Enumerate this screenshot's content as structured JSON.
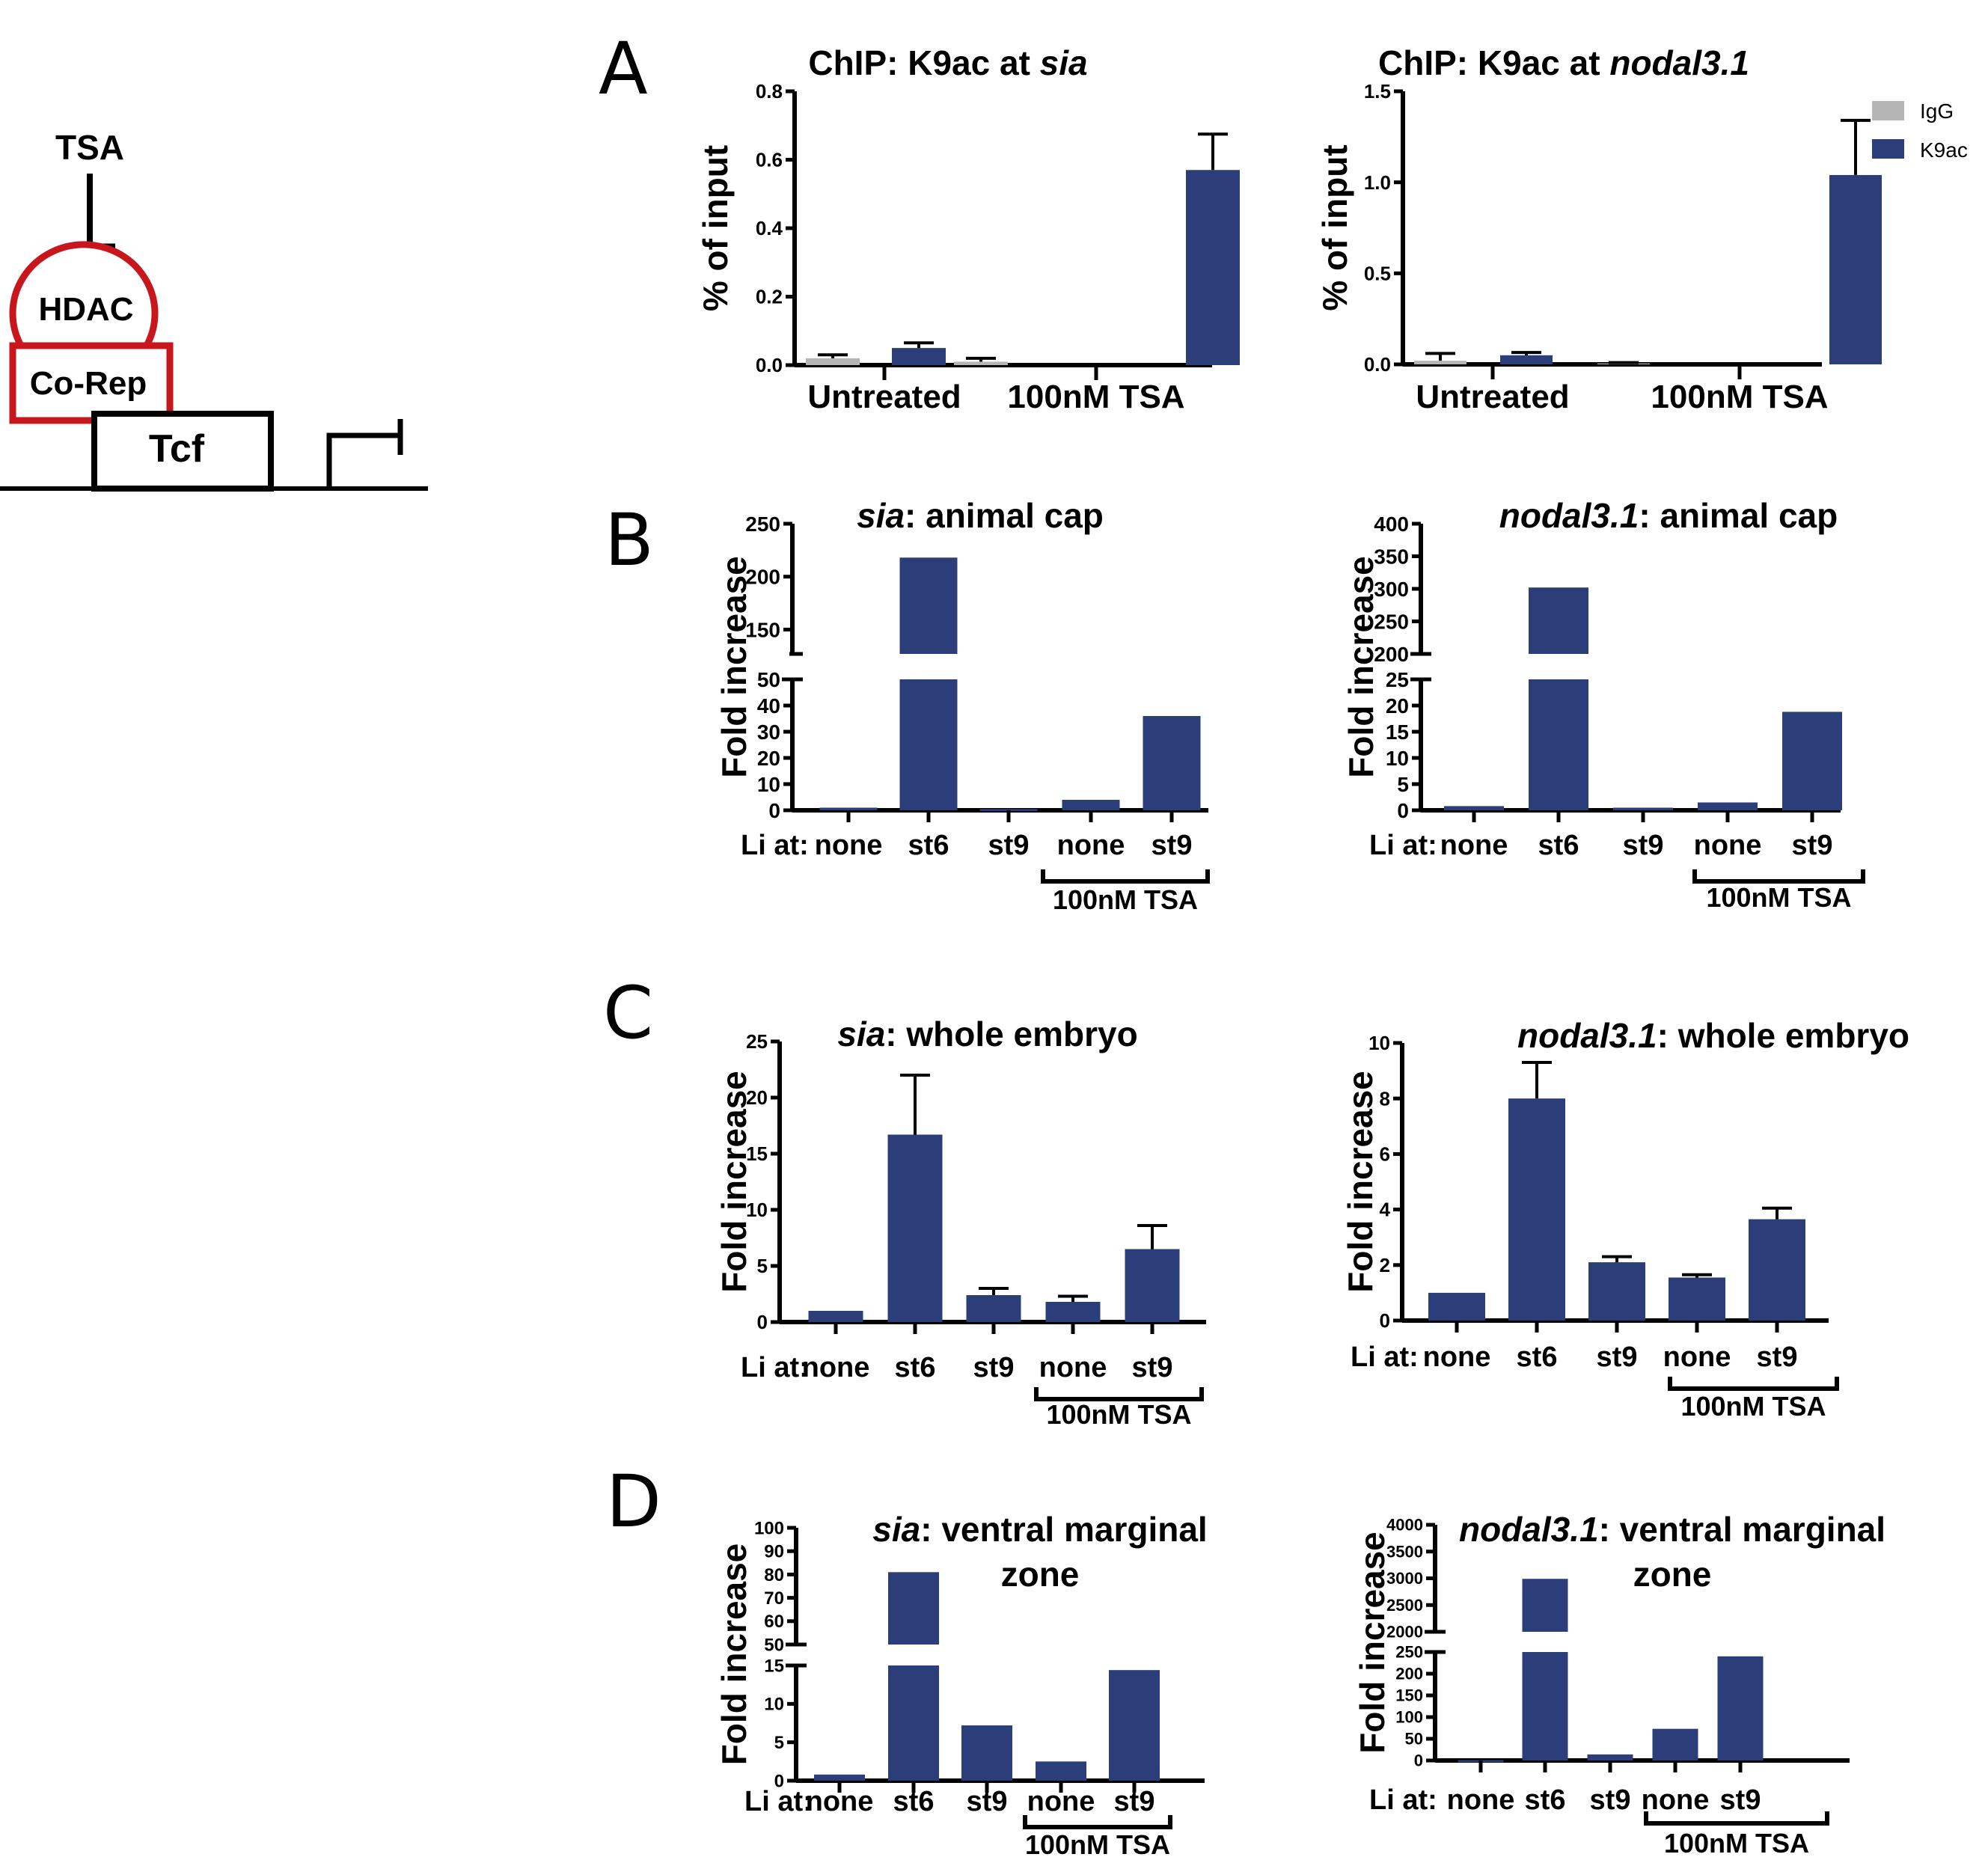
{
  "schematic": {
    "inhibitor_label": "TSA",
    "hdac_label": "HDAC",
    "corepressor_label": "Co-Rep",
    "tcf_label": "Tcf",
    "repressor_color": "#c8161d"
  },
  "legend": {
    "items": [
      {
        "label": "IgG",
        "color": "#b5b5b5"
      },
      {
        "label": "K9ac",
        "color": "#2b3e7a"
      }
    ]
  },
  "x_prefix_label": "Li at:",
  "tsa_bracket_label": "100nM TSA",
  "chart_data": [
    {
      "id": "A-sia",
      "panel": "A",
      "type": "bar",
      "title_italic": "",
      "title_prefix": "ChIP: K9ac at ",
      "title_gene": "sia",
      "title_suffix": "",
      "ylabel": "% of input",
      "ylim": [
        0,
        0.8
      ],
      "yticks": [
        "0.0",
        "0.2",
        "0.4",
        "0.6",
        "0.8"
      ],
      "ytick_values": [
        0,
        0.2,
        0.4,
        0.6,
        0.8
      ],
      "categories": [
        "Untreated",
        "100nM TSA"
      ],
      "series": [
        {
          "name": "IgG",
          "values": [
            0.02,
            0.01
          ],
          "errors": [
            0.03,
            0.02
          ]
        },
        {
          "name": "K9ac",
          "values": [
            0.05,
            0.57
          ],
          "errors": [
            0.065,
            0.675
          ]
        }
      ]
    },
    {
      "id": "A-nodal",
      "panel": "",
      "type": "bar",
      "title_prefix": "ChIP: K9ac at ",
      "title_gene": "nodal3.1",
      "title_suffix": "",
      "ylabel": "% of input",
      "ylim": [
        0,
        1.5
      ],
      "yticks": [
        "0.0",
        "0.5",
        "1.0",
        "1.5"
      ],
      "ytick_values": [
        0,
        0.5,
        1.0,
        1.5
      ],
      "categories": [
        "Untreated",
        "100nM TSA"
      ],
      "series": [
        {
          "name": "IgG",
          "values": [
            0.02,
            0.005
          ],
          "errors": [
            0.06,
            0.01
          ]
        },
        {
          "name": "K9ac",
          "values": [
            0.05,
            1.04
          ],
          "errors": [
            0.065,
            1.34
          ]
        }
      ]
    },
    {
      "id": "B-sia",
      "panel": "B",
      "type": "bar",
      "title_prefix": "",
      "title_gene": "sia",
      "title_suffix": ": animal cap",
      "ylabel": "Fold increase",
      "broken_axis": true,
      "lower_range": [
        0,
        50
      ],
      "upper_range": [
        127,
        250
      ],
      "lower_ticks": [
        0,
        10,
        20,
        30,
        40,
        50
      ],
      "upper_ticks": [
        150,
        200,
        250
      ],
      "categories": [
        "none",
        "st6",
        "st9",
        "none",
        "st9"
      ],
      "tsa_treated": [
        false,
        false,
        false,
        true,
        true
      ],
      "values": [
        1,
        218,
        0.5,
        4,
        36
      ],
      "errors": [
        null,
        null,
        null,
        null,
        null
      ]
    },
    {
      "id": "B-nodal",
      "panel": "",
      "type": "bar",
      "title_prefix": "",
      "title_gene": "nodal3.1",
      "title_suffix": ": animal cap",
      "ylabel": "Fold increase",
      "broken_axis": true,
      "lower_range": [
        0,
        25
      ],
      "upper_range": [
        200,
        400
      ],
      "lower_ticks": [
        0,
        5,
        10,
        15,
        20,
        25
      ],
      "upper_ticks": [
        200,
        250,
        300,
        350,
        400
      ],
      "categories": [
        "none",
        "st6",
        "st9",
        "none",
        "st9"
      ],
      "tsa_treated": [
        false,
        false,
        false,
        true,
        true
      ],
      "values": [
        0.8,
        302,
        0.5,
        1.5,
        18.8
      ],
      "errors": [
        null,
        null,
        null,
        null,
        null
      ]
    },
    {
      "id": "C-sia",
      "panel": "C",
      "type": "bar",
      "title_prefix": "",
      "title_gene": "sia",
      "title_suffix": ": whole embryo",
      "ylabel": "Fold increase",
      "ylim": [
        0,
        25
      ],
      "ytick_values": [
        0,
        5,
        10,
        15,
        20,
        25
      ],
      "categories": [
        "none",
        "st6",
        "st9",
        "none",
        "st9"
      ],
      "tsa_treated": [
        false,
        false,
        false,
        true,
        true
      ],
      "values": [
        1.0,
        16.7,
        2.4,
        1.8,
        6.5
      ],
      "errors": [
        null,
        22.0,
        3.0,
        2.3,
        8.6
      ]
    },
    {
      "id": "C-nodal",
      "panel": "",
      "type": "bar",
      "title_prefix": "",
      "title_gene": "nodal3.1",
      "title_suffix": ": whole embryo",
      "ylabel": "Fold increase",
      "ylim": [
        0,
        10
      ],
      "ytick_values": [
        0,
        2,
        4,
        6,
        8,
        10
      ],
      "categories": [
        "none",
        "st6",
        "st9",
        "none",
        "st9"
      ],
      "tsa_treated": [
        false,
        false,
        false,
        true,
        true
      ],
      "values": [
        1.0,
        8.0,
        2.1,
        1.55,
        3.65
      ],
      "errors": [
        null,
        9.3,
        2.3,
        1.65,
        4.05
      ]
    },
    {
      "id": "D-sia",
      "panel": "D",
      "type": "bar",
      "title_prefix": "",
      "title_gene": "sia",
      "title_suffix": ": ventral marginal",
      "title_line2": "zone",
      "ylabel": "Fold increase",
      "broken_axis": true,
      "lower_range": [
        0,
        15
      ],
      "upper_range": [
        50,
        100
      ],
      "lower_ticks": [
        0,
        5,
        10,
        15
      ],
      "upper_ticks": [
        50,
        60,
        70,
        80,
        90,
        100
      ],
      "categories": [
        "none",
        "st6",
        "st9",
        "none",
        "st9"
      ],
      "tsa_treated": [
        false,
        false,
        false,
        true,
        true
      ],
      "values": [
        0.8,
        81,
        7.2,
        2.5,
        14.4
      ],
      "errors": [
        null,
        null,
        null,
        null,
        null
      ]
    },
    {
      "id": "D-nodal",
      "panel": "",
      "type": "bar",
      "title_prefix": "",
      "title_gene": "nodal3.1",
      "title_suffix": ": ventral marginal",
      "title_line2": "zone",
      "ylabel": "Fold increase",
      "broken_axis": true,
      "lower_range": [
        0,
        250
      ],
      "upper_range": [
        2000,
        4000
      ],
      "lower_ticks": [
        0,
        50,
        100,
        150,
        200,
        250
      ],
      "upper_ticks": [
        2000,
        2500,
        3000,
        3500,
        4000
      ],
      "categories": [
        "none",
        "st6",
        "st9",
        "none",
        "st9"
      ],
      "tsa_treated": [
        false,
        false,
        false,
        true,
        true
      ],
      "values": [
        1,
        2990,
        14,
        73,
        240
      ],
      "errors": [
        null,
        null,
        null,
        null,
        null
      ]
    }
  ]
}
